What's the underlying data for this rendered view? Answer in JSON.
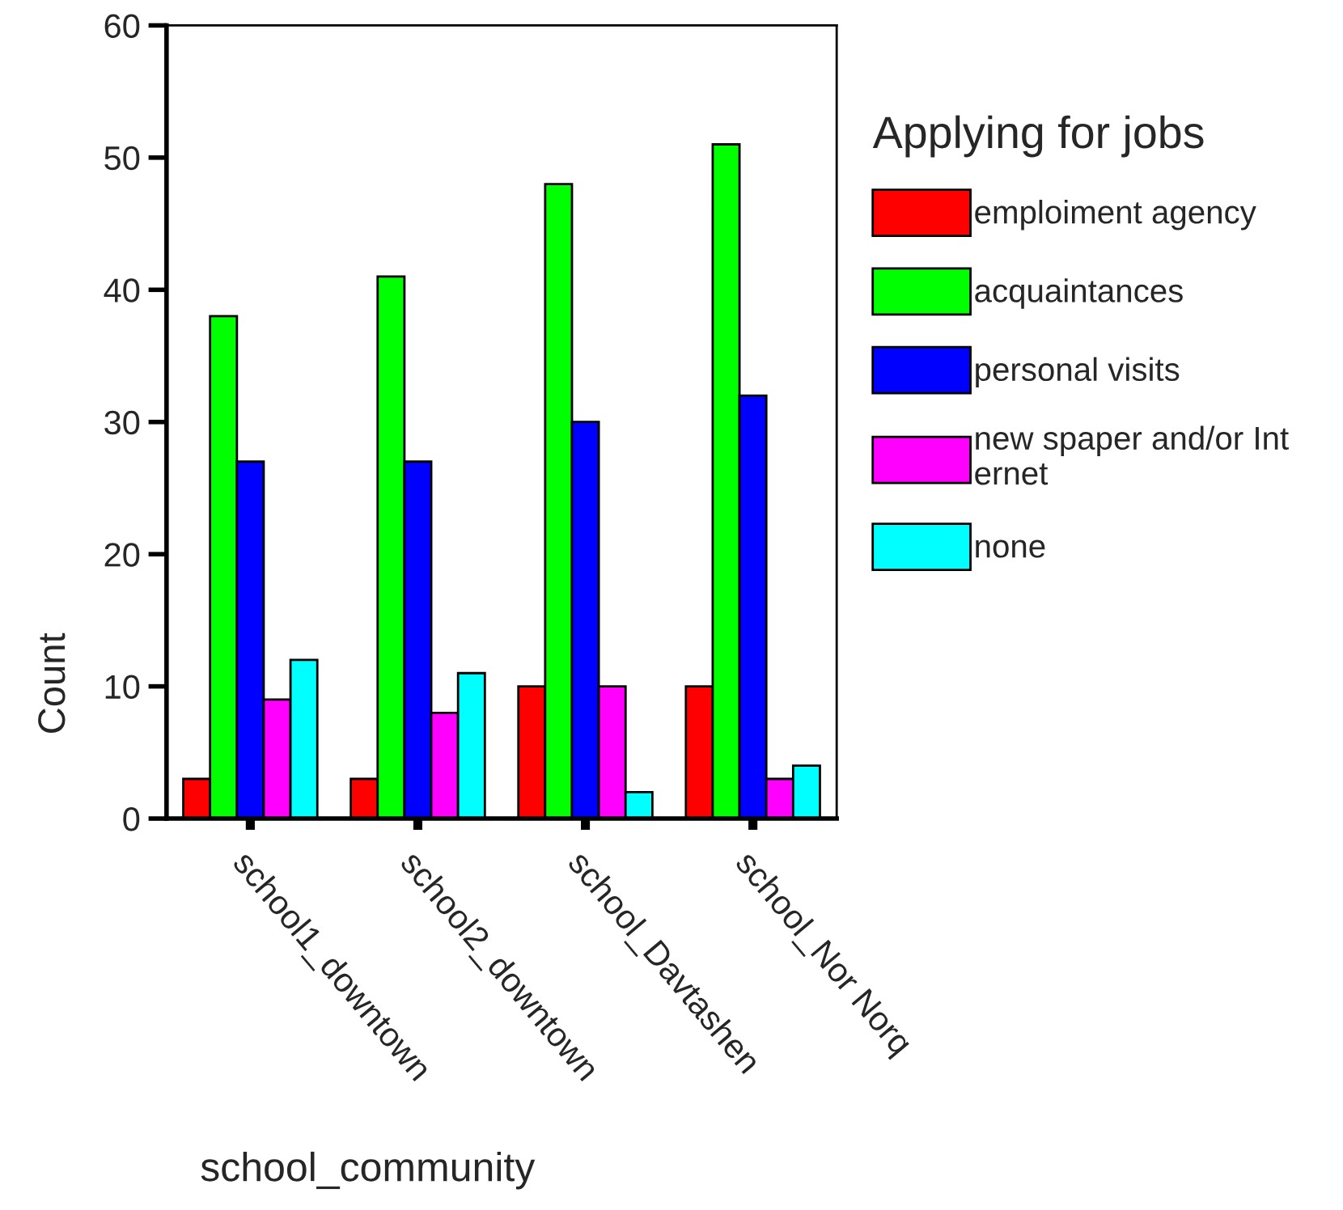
{
  "chart_data": {
    "type": "bar",
    "xlabel": "school_community",
    "ylabel": "Count",
    "legend_title": "Applying for jobs",
    "categories": [
      "school1_downtown",
      "school2_downtown",
      "school_Davtashen",
      "school_Nor Norq"
    ],
    "series": [
      {
        "name": "emploiment agency",
        "color": "#ff0000",
        "values": [
          3,
          3,
          10,
          10
        ]
      },
      {
        "name": "acquaintances",
        "color": "#00ff00",
        "values": [
          38,
          41,
          48,
          51
        ]
      },
      {
        "name": "personal visits",
        "color": "#0000ff",
        "values": [
          27,
          27,
          30,
          32
        ]
      },
      {
        "name": "new spaper and/or Int\nernet",
        "color": "#ff00ff",
        "values": [
          9,
          8,
          10,
          3
        ]
      },
      {
        "name": "none",
        "color": "#00ffff",
        "values": [
          12,
          11,
          2,
          4
        ]
      }
    ],
    "ylim": [
      0,
      60
    ],
    "yticks": [
      0,
      10,
      20,
      30,
      40,
      50,
      60
    ],
    "grid": false,
    "legend": "right"
  }
}
